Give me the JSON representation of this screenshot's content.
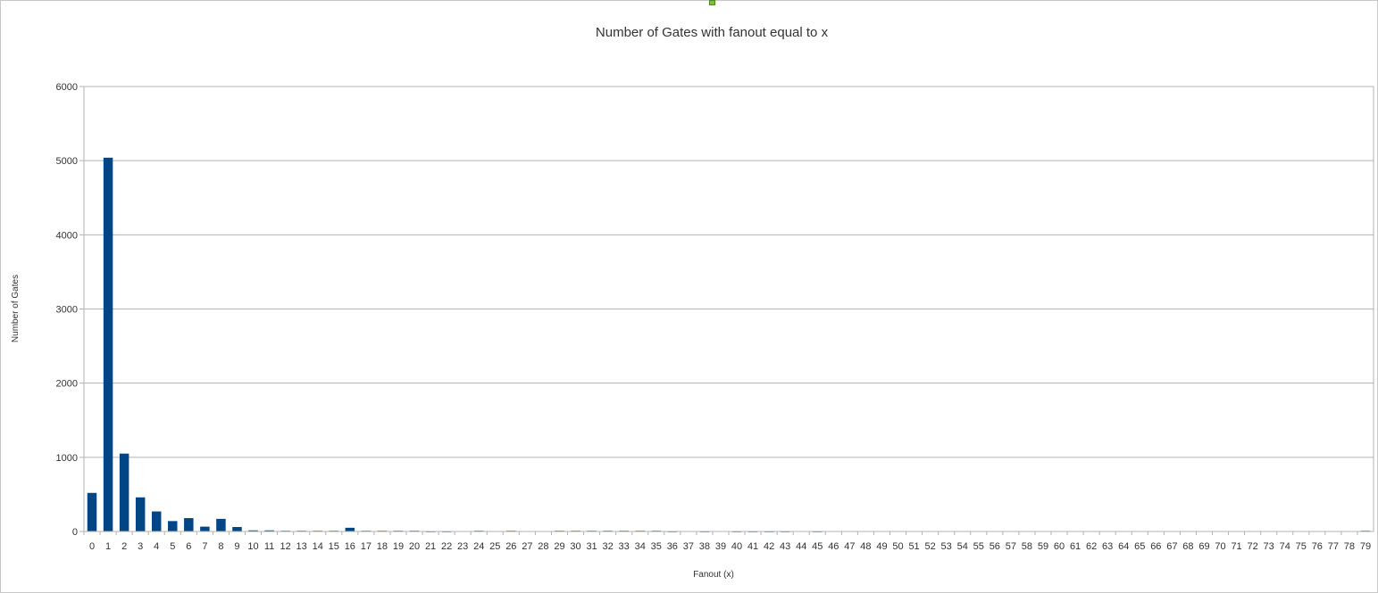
{
  "chart_data": {
    "type": "bar",
    "title": "Number of Gates with fanout equal to x",
    "xlabel": "Fanout (x)",
    "ylabel": "Number of Gates",
    "ylim": [
      0,
      6000
    ],
    "yticks": [
      0,
      1000,
      2000,
      3000,
      4000,
      5000,
      6000
    ],
    "grid": true,
    "legend": "none",
    "bar_color": "#004586",
    "categories": [
      "0",
      "1",
      "2",
      "3",
      "4",
      "5",
      "6",
      "7",
      "8",
      "9",
      "10",
      "11",
      "12",
      "13",
      "14",
      "15",
      "16",
      "17",
      "18",
      "19",
      "20",
      "21",
      "22",
      "23",
      "24",
      "25",
      "26",
      "27",
      "28",
      "29",
      "30",
      "31",
      "32",
      "33",
      "34",
      "35",
      "36",
      "37",
      "38",
      "39",
      "40",
      "41",
      "42",
      "43",
      "44",
      "45",
      "46",
      "47",
      "48",
      "49",
      "50",
      "51",
      "52",
      "53",
      "54",
      "55",
      "56",
      "57",
      "58",
      "59",
      "60",
      "61",
      "62",
      "63",
      "64",
      "65",
      "66",
      "67",
      "68",
      "69",
      "70",
      "71",
      "72",
      "73",
      "74",
      "75",
      "76",
      "77",
      "78",
      "79"
    ],
    "values": [
      520,
      5040,
      1050,
      460,
      270,
      140,
      180,
      65,
      170,
      60,
      15,
      15,
      10,
      10,
      10,
      10,
      50,
      10,
      10,
      10,
      10,
      5,
      5,
      0,
      10,
      0,
      10,
      0,
      0,
      10,
      10,
      10,
      10,
      10,
      10,
      10,
      5,
      0,
      5,
      0,
      5,
      5,
      5,
      5,
      0,
      5,
      0,
      0,
      0,
      0,
      0,
      0,
      0,
      0,
      0,
      0,
      0,
      0,
      0,
      0,
      0,
      0,
      0,
      0,
      0,
      0,
      0,
      0,
      0,
      0,
      0,
      0,
      0,
      0,
      0,
      0,
      0,
      0,
      0,
      10
    ]
  }
}
